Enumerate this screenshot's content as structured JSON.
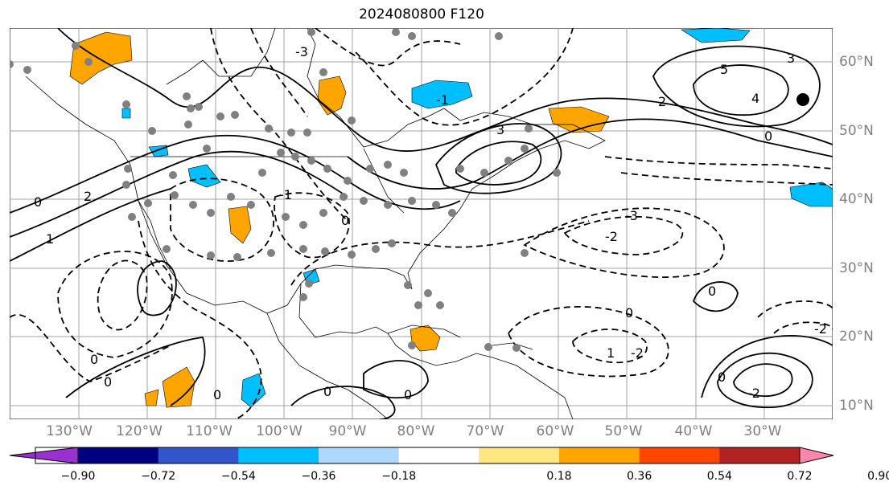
{
  "title": "2024080800 F120",
  "map": {
    "lon_labels": [
      "130°W",
      "120°W",
      "110°W",
      "100°W",
      "90°W",
      "80°W",
      "70°W",
      "60°W",
      "50°W",
      "40°W",
      "30°W"
    ],
    "lat_labels": [
      "60°N",
      "50°N",
      "40°N",
      "30°N",
      "20°N",
      "10°N"
    ],
    "contour_labels": [
      "-3",
      "-2",
      "-1",
      "0",
      "1",
      "2",
      "3",
      "4",
      "5"
    ],
    "colors": {
      "gridline": "#a0a0a0",
      "contour": "#000000",
      "station": "#808080",
      "marker": "#000000"
    }
  },
  "colorbar": {
    "tick_labels": [
      "−0.90",
      "−0.72",
      "−0.54",
      "−0.36",
      "−0.18",
      "0.18",
      "0.36",
      "0.54",
      "0.72",
      "0.90"
    ],
    "colors": [
      "#9b30d0",
      "#000080",
      "#3355cc",
      "#00bfff",
      "#add8ff",
      "#ffffff",
      "#ffe680",
      "#ffa500",
      "#ff4500",
      "#b22222",
      "#ff85aa"
    ]
  }
}
